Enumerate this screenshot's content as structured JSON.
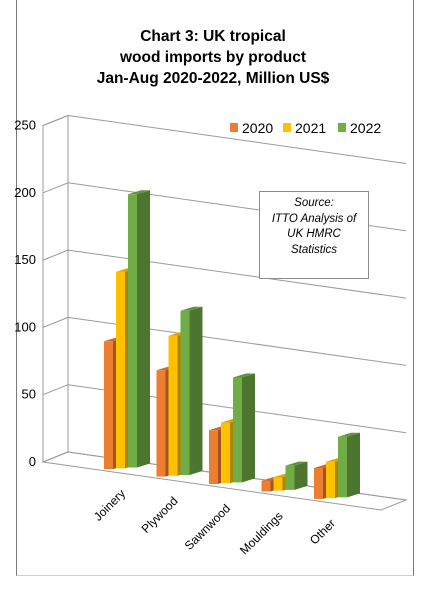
{
  "title": {
    "line1": "Chart 3: UK tropical",
    "line2": "wood imports by product",
    "line3": "Jan-Aug 2020-2022, Million US$"
  },
  "source_note": {
    "line1": "Source:",
    "line2": "ITTO Analysis of",
    "line3": "UK HMRC",
    "line4": "Statistics"
  },
  "colors": {
    "2020": "#ed7d31",
    "2021": "#ffc000",
    "2022": "#70ad47"
  },
  "chart_data": {
    "type": "bar",
    "title": "Chart 3: UK tropical wood imports by product Jan-Aug 2020-2022, Million US$",
    "categories": [
      "Joinery",
      "Plywood",
      "Sawnwood",
      "Mouldings",
      "Other"
    ],
    "series": [
      {
        "name": "2020",
        "values": [
          95,
          79,
          40,
          8,
          23
        ]
      },
      {
        "name": "2021",
        "values": [
          146,
          104,
          45,
          10,
          27
        ]
      },
      {
        "name": "2022",
        "values": [
          203,
          122,
          78,
          18,
          45
        ]
      }
    ],
    "ylim": [
      0,
      250
    ],
    "yticks": [
      0,
      50,
      100,
      150,
      200,
      250
    ],
    "grid": true,
    "legend": "top-right",
    "style": "3d-clustered-column"
  }
}
